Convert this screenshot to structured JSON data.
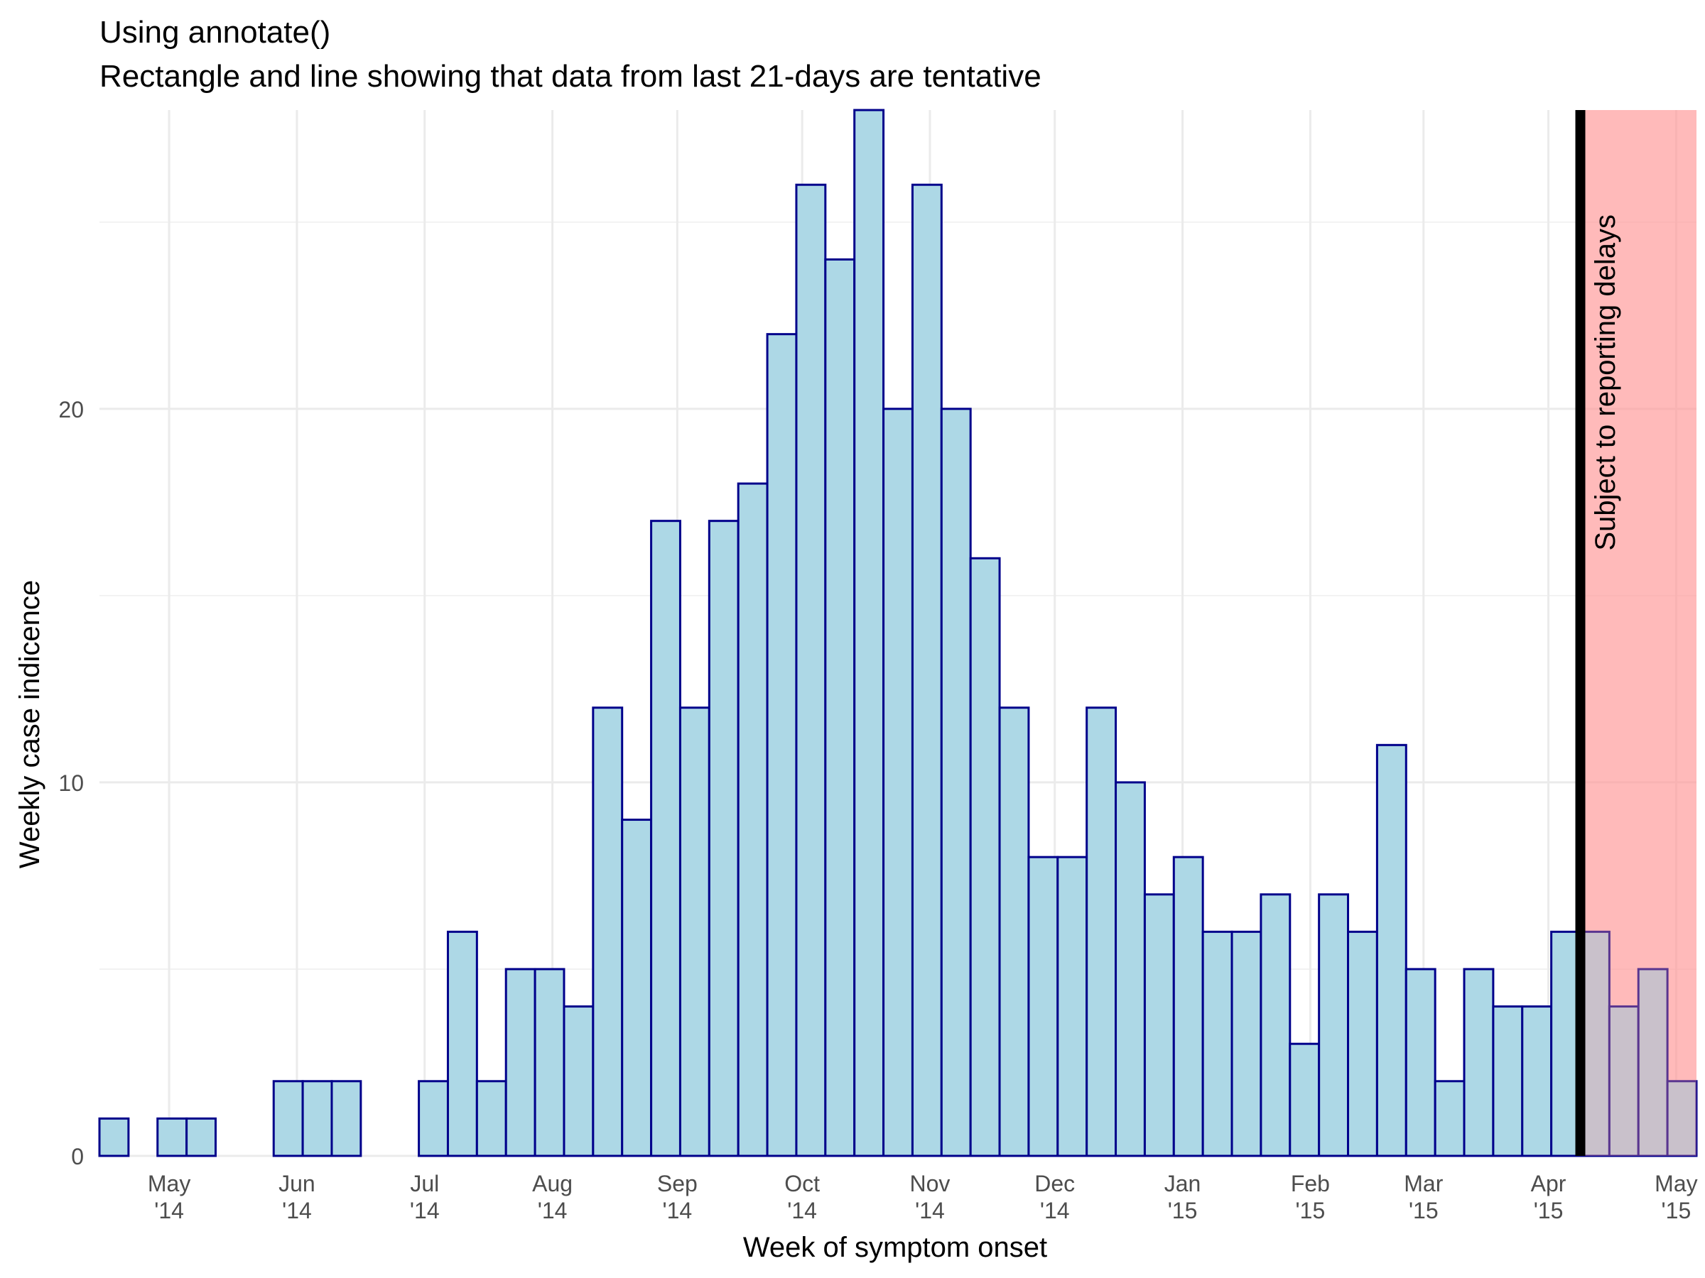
{
  "chart_data": {
    "type": "bar",
    "title": "Using annotate()",
    "subtitle": "Rectangle and line showing that data from last 21-days are tentative",
    "xlabel": "Week of symptom onset",
    "ylabel": "Weekly case indicence",
    "ylim": [
      0,
      28
    ],
    "y_ticks": [
      0,
      10,
      20
    ],
    "x_ticks": [
      {
        "month": "May",
        "year": "'14"
      },
      {
        "month": "Jun",
        "year": "'14"
      },
      {
        "month": "Jul",
        "year": "'14"
      },
      {
        "month": "Aug",
        "year": "'14"
      },
      {
        "month": "Sep",
        "year": "'14"
      },
      {
        "month": "Oct",
        "year": "'14"
      },
      {
        "month": "Nov",
        "year": "'14"
      },
      {
        "month": "Dec",
        "year": "'14"
      },
      {
        "month": "Jan",
        "year": "'15"
      },
      {
        "month": "Feb",
        "year": "'15"
      },
      {
        "month": "Mar",
        "year": "'15"
      },
      {
        "month": "Apr",
        "year": "'15"
      },
      {
        "month": "May",
        "year": "'15"
      }
    ],
    "grid": true,
    "bar_fill": "#add8e6",
    "bar_outline": "#00008b",
    "values": [
      1,
      0,
      1,
      1,
      0,
      0,
      2,
      2,
      2,
      0,
      0,
      2,
      6,
      2,
      5,
      5,
      4,
      12,
      9,
      17,
      12,
      17,
      18,
      22,
      26,
      24,
      28,
      20,
      26,
      20,
      16,
      12,
      8,
      8,
      12,
      10,
      7,
      8,
      6,
      6,
      7,
      3,
      7,
      6,
      11,
      5,
      2,
      5,
      4,
      4,
      6,
      6,
      4,
      5,
      2
    ],
    "tentative_from_week": 51,
    "annotation": {
      "text": "Subject to reporting delays",
      "shade_color": "#ff9999",
      "line_color": "#000000"
    }
  }
}
